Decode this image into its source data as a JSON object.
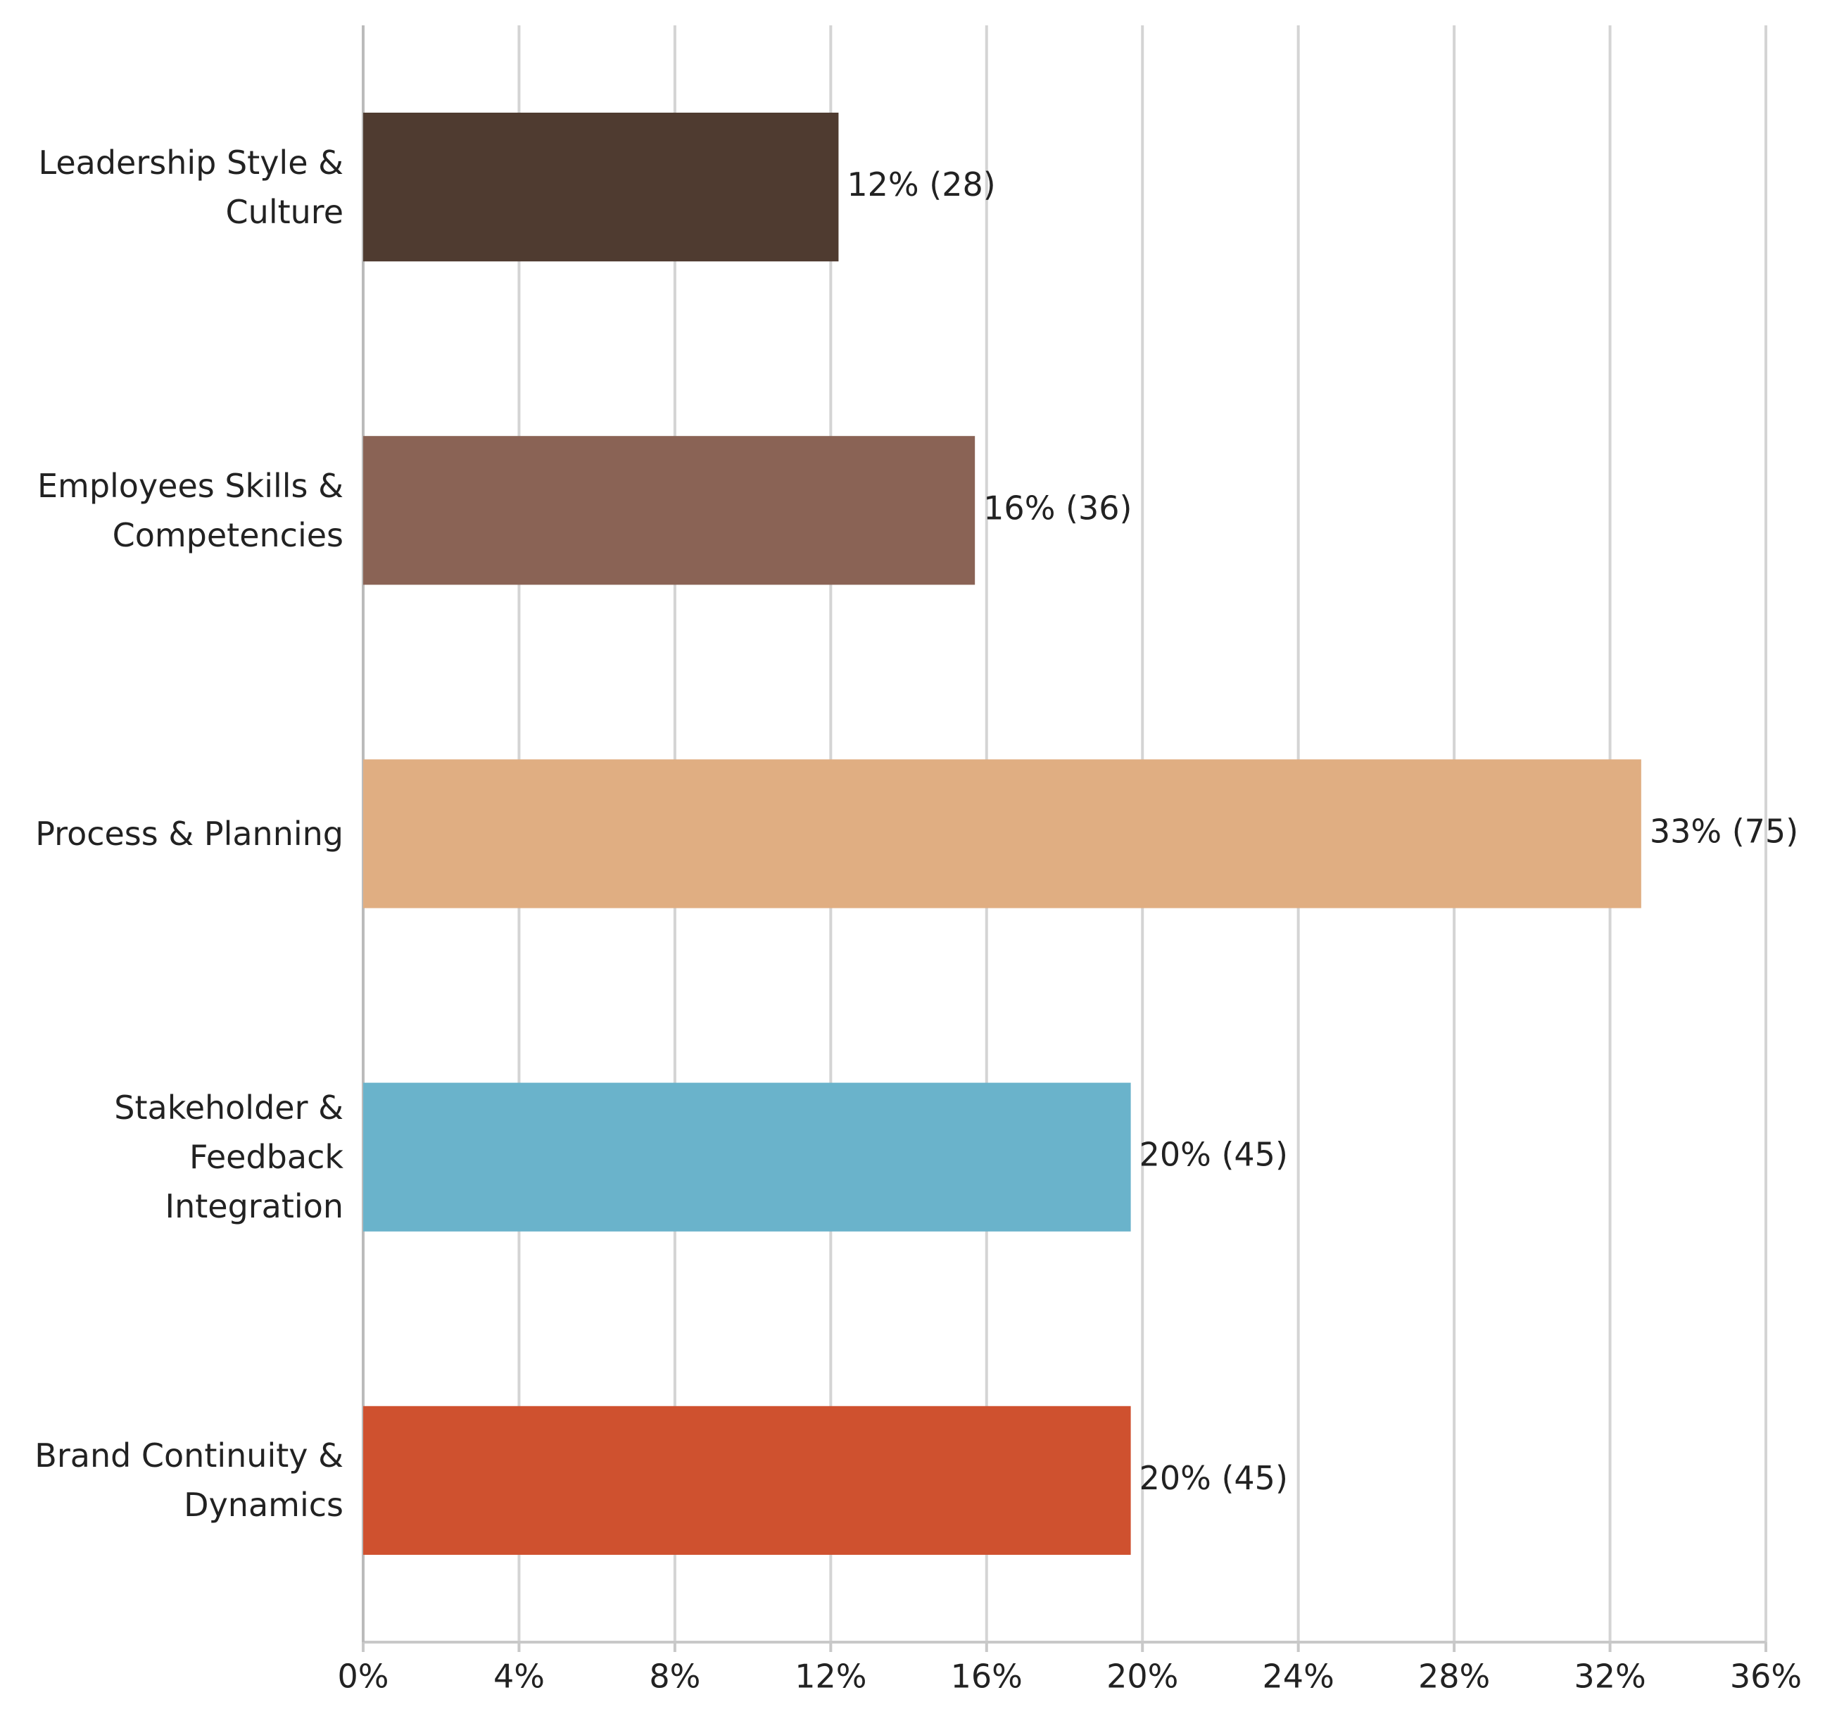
{
  "chart_data": {
    "type": "hbar",
    "categories": [
      "Leadership Style & Culture",
      "Employees Skills & Competencies",
      "Process & Planning",
      "Stakeholder & Feedback Integration",
      "Brand Continuity & Dynamics"
    ],
    "values": [
      12.2,
      15.7,
      32.8,
      19.7,
      19.7
    ],
    "value_labels": [
      "12% (28)",
      "16% (36)",
      "33% (75)",
      "20% (45)",
      "20% (45)"
    ],
    "colors": [
      "#4f3b30",
      "#8a6355",
      "#e0ae82",
      "#6ab3cb",
      "#cf512f"
    ],
    "xlim": [
      0,
      36
    ],
    "xticks": [
      {
        "value": 0,
        "label": "0%"
      },
      {
        "value": 4,
        "label": "4%"
      },
      {
        "value": 8,
        "label": "8%"
      },
      {
        "value": 12,
        "label": "12%"
      },
      {
        "value": 16,
        "label": "16%"
      },
      {
        "value": 20,
        "label": "20%"
      },
      {
        "value": 24,
        "label": "24%"
      },
      {
        "value": 28,
        "label": "28%"
      },
      {
        "value": 32,
        "label": "32%"
      },
      {
        "value": 36,
        "label": "36%"
      }
    ],
    "grid": true
  }
}
